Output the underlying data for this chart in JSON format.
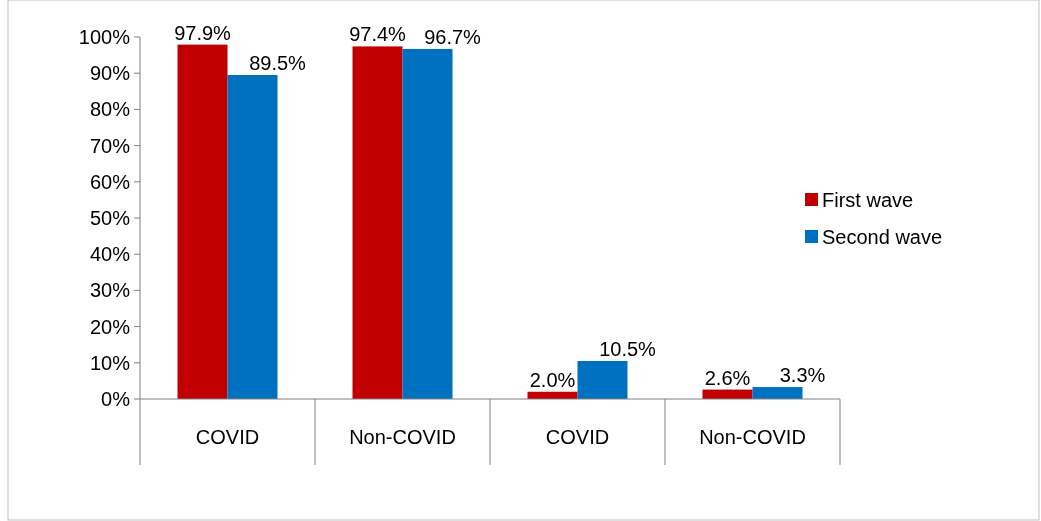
{
  "chart_data": {
    "type": "bar",
    "categories": [
      "COVID",
      "Non-COVID",
      "COVID",
      "Non-COVID"
    ],
    "series": [
      {
        "name": "First wave",
        "color": "#c00000",
        "values": [
          97.9,
          97.4,
          2.0,
          2.6
        ],
        "value_labels": [
          "97.9%",
          "97.4%",
          "2.0%",
          "2.6%"
        ]
      },
      {
        "name": "Second wave",
        "color": "#0070c0",
        "values": [
          89.5,
          96.7,
          10.5,
          3.3
        ],
        "value_labels": [
          "89.5%",
          "96.7%",
          "10.5%",
          "3.3%"
        ]
      }
    ],
    "ylim": [
      0,
      100
    ],
    "yticks": [
      {
        "value": 0,
        "label": "0%"
      },
      {
        "value": 10,
        "label": "10%"
      },
      {
        "value": 20,
        "label": "20%"
      },
      {
        "value": 30,
        "label": "30%"
      },
      {
        "value": 40,
        "label": "40%"
      },
      {
        "value": 50,
        "label": "50%"
      },
      {
        "value": 60,
        "label": "60%"
      },
      {
        "value": 70,
        "label": "70%"
      },
      {
        "value": 80,
        "label": "80%"
      },
      {
        "value": 90,
        "label": "90%"
      },
      {
        "value": 100,
        "label": "100%"
      }
    ],
    "grid": false,
    "legend": "right"
  }
}
